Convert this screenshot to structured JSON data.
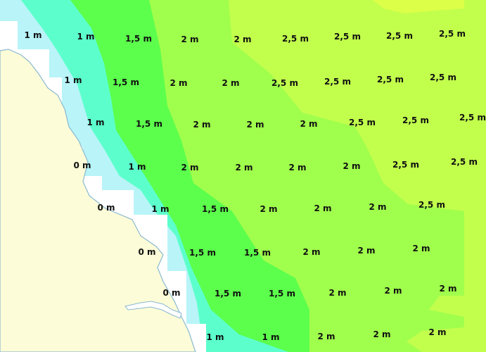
{
  "map": {
    "colors": {
      "land": "#fcfcd8",
      "coast_white": "#ffffff",
      "coastline": "#8ab8d0",
      "zone_0_5m": "#b8f4f8",
      "zone_1m": "#5cffcc",
      "zone_1_5m": "#5cff4c",
      "zone_2m": "#a0ff4c",
      "zone_2_5m": "#c2ff4c",
      "zone_3m": "#dcff48"
    },
    "labels": [
      "1 m",
      "1 m",
      "1,5 m",
      "2 m",
      "2 m",
      "2,5 m",
      "2,5 m",
      "2,5 m",
      "2,5 m",
      "1 m",
      "1,5 m",
      "2 m",
      "2 m",
      "2,5 m",
      "2,5 m",
      "2,5 m",
      "2,5 m",
      "1 m",
      "1,5 m",
      "2 m",
      "2 m",
      "2 m",
      "2,5 m",
      "2,5 m",
      "2,5 m",
      "0 m",
      "1 m",
      "2 m",
      "2 m",
      "2 m",
      "2 m",
      "2,5 m",
      "2,5 m",
      "0 m",
      "1 m",
      "1,5 m",
      "2 m",
      "2 m",
      "2 m",
      "2,5 m",
      "0 m",
      "1,5 m",
      "1,5 m",
      "2 m",
      "2 m",
      "2 m",
      "0 m",
      "1,5 m",
      "1,5 m",
      "2 m",
      "2 m",
      "2 m",
      "1 m",
      "1 m",
      "2 m",
      "2 m",
      "2 m"
    ]
  }
}
